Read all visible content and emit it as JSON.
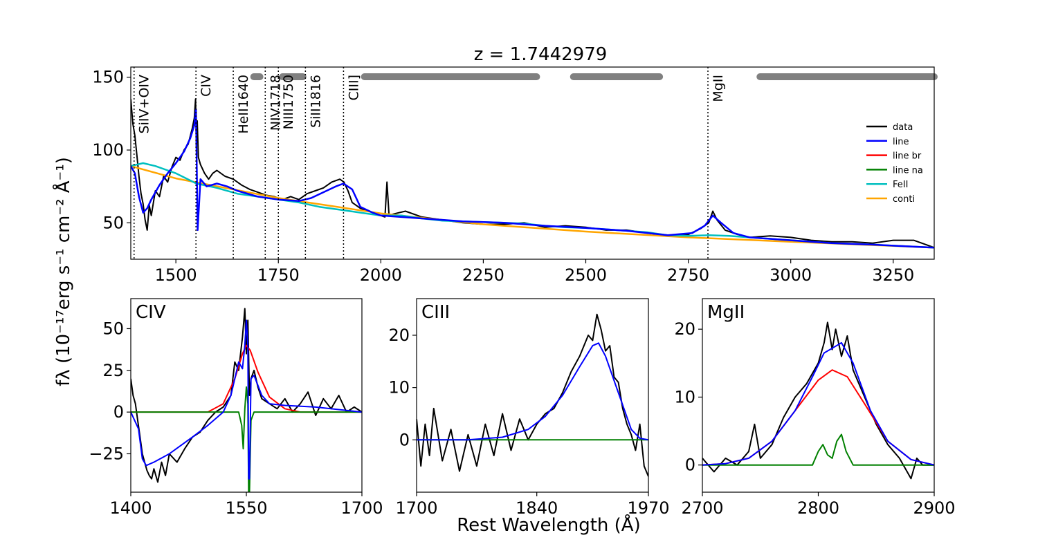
{
  "figure": {
    "title": "z = 1.7442979",
    "xlabel": "Rest Wavelength (Å)",
    "ylabel": "fλ (10⁻¹⁷erg s⁻¹ cm⁻² Å⁻¹)"
  },
  "colors": {
    "data": "#000000",
    "line": "#0000ff",
    "line_br": "#ff0000",
    "line_na": "#008000",
    "feii": "#00bfbf",
    "conti": "#ffa500",
    "mask": "#808080"
  },
  "legend": {
    "position": "right",
    "entries": [
      {
        "label": "data",
        "color": "#000000"
      },
      {
        "label": "line",
        "color": "#0000ff"
      },
      {
        "label": "line br",
        "color": "#ff0000"
      },
      {
        "label": "line na",
        "color": "#008000"
      },
      {
        "label": "FeII",
        "color": "#00bfbf"
      },
      {
        "label": "conti",
        "color": "#ffa500"
      }
    ]
  },
  "chart_data": [
    {
      "type": "line",
      "panel": "main",
      "xlim": [
        1390,
        3350
      ],
      "ylim": [
        25,
        157
      ],
      "xticks": [
        1500,
        1750,
        2000,
        2250,
        2500,
        2750,
        3000,
        3250
      ],
      "yticks": [
        50,
        100,
        150
      ],
      "line_markers": [
        {
          "label": "SiIV+OIV",
          "x": 1398
        },
        {
          "label": "CIV",
          "x": 1549
        },
        {
          "label": "HeII1640",
          "x": 1640
        },
        {
          "label": "NIV1718",
          "x": 1718
        },
        {
          "label": "NIII1750",
          "x": 1750
        },
        {
          "label": "SiII1816",
          "x": 1816
        },
        {
          "label": "CIII]",
          "x": 1909
        },
        {
          "label": "MgII",
          "x": 2798
        }
      ],
      "fit_windows": [
        [
          1690,
          1705
        ],
        [
          1760,
          1810
        ],
        [
          1960,
          2380
        ],
        [
          2470,
          2680
        ],
        [
          2925,
          3350
        ]
      ],
      "conti": {
        "x": [
          1390,
          1500,
          1750,
          2000,
          2250,
          2500,
          2750,
          3000,
          3350
        ],
        "y": [
          89,
          80.5,
          67,
          56.5,
          49,
          44,
          40,
          37,
          33
        ]
      },
      "feii": {
        "x": [
          1390,
          1420,
          1450,
          1480,
          1500,
          1550,
          1600,
          1650,
          1700,
          1750,
          1800,
          1850,
          1900,
          1950,
          2000,
          2050,
          2100,
          2150,
          2200,
          2250,
          2300,
          2350,
          2400,
          2450,
          2500,
          2550,
          2600,
          2650,
          2700,
          2750,
          2800,
          2850,
          2900,
          2950,
          3000,
          3100,
          3200,
          3350
        ],
        "y": [
          89,
          91,
          89,
          86,
          84,
          77,
          74,
          70,
          68,
          66,
          64,
          61,
          59,
          57,
          55,
          55,
          53,
          51.5,
          51,
          50.5,
          50,
          49.5,
          48,
          47,
          46.5,
          45.5,
          44.5,
          43.5,
          41.5,
          41,
          41.5,
          41,
          40,
          39,
          38,
          36,
          35,
          33
        ]
      },
      "model_line": {
        "x": [
          1390,
          1400,
          1410,
          1420,
          1430,
          1440,
          1460,
          1480,
          1500,
          1520,
          1535,
          1545,
          1549,
          1553,
          1560,
          1575,
          1600,
          1625,
          1650,
          1700,
          1750,
          1800,
          1830,
          1860,
          1890,
          1909,
          1930,
          1950,
          1980,
          2000,
          2100,
          2200,
          2300,
          2400,
          2500,
          2600,
          2700,
          2760,
          2790,
          2810,
          2830,
          2860,
          2900,
          3000,
          3100,
          3200,
          3350
        ],
        "y": [
          89,
          84,
          68,
          57,
          60,
          66,
          76,
          84,
          91,
          99,
          108,
          117,
          128,
          45,
          80,
          75,
          77,
          75,
          72,
          68,
          66,
          65,
          67,
          71,
          75,
          77,
          73,
          61,
          57,
          55,
          53,
          51,
          50,
          48,
          46.5,
          44.5,
          41.5,
          43,
          48,
          55,
          50,
          43,
          40,
          38,
          36,
          35,
          33
        ]
      },
      "data_line": {
        "x": [
          1390,
          1395,
          1400,
          1405,
          1410,
          1415,
          1420,
          1425,
          1430,
          1435,
          1440,
          1450,
          1460,
          1470,
          1480,
          1490,
          1500,
          1510,
          1520,
          1530,
          1540,
          1545,
          1548,
          1550,
          1552,
          1555,
          1560,
          1570,
          1580,
          1590,
          1600,
          1620,
          1640,
          1660,
          1680,
          1700,
          1720,
          1740,
          1760,
          1780,
          1800,
          1820,
          1840,
          1860,
          1880,
          1900,
          1910,
          1920,
          1930,
          1950,
          1970,
          1990,
          2010,
          2015,
          2020,
          2030,
          2060,
          2100,
          2150,
          2200,
          2250,
          2300,
          2350,
          2400,
          2450,
          2500,
          2550,
          2600,
          2650,
          2700,
          2750,
          2780,
          2800,
          2810,
          2820,
          2840,
          2870,
          2900,
          2950,
          3000,
          3050,
          3100,
          3150,
          3200,
          3250,
          3300,
          3350
        ],
        "y": [
          135,
          118,
          110,
          96,
          82,
          70,
          63,
          52,
          45,
          62,
          55,
          72,
          68,
          82,
          78,
          88,
          95,
          93,
          100,
          104,
          115,
          122,
          135,
          102,
          120,
          95,
          90,
          84,
          80,
          84,
          86,
          82,
          80,
          76,
          73,
          71,
          69,
          68,
          66,
          68,
          66,
          70,
          72,
          74,
          78,
          80,
          78,
          72,
          64,
          60,
          58,
          56,
          54,
          78,
          55,
          56,
          58,
          54,
          52,
          50,
          49,
          49,
          50,
          47,
          48,
          47,
          45,
          45,
          43,
          41,
          42,
          46,
          50,
          58,
          52,
          45,
          42,
          40,
          41,
          40,
          38,
          37,
          37,
          36,
          38,
          38,
          33
        ]
      }
    },
    {
      "type": "line",
      "panel": "CIV",
      "title": "CIV",
      "xlim": [
        1400,
        1700
      ],
      "ylim": [
        -48,
        68
      ],
      "xticks": [
        1400,
        1550,
        1700
      ],
      "yticks": [
        -25,
        0,
        25,
        50
      ],
      "line_br": {
        "x": [
          1400,
          1420,
          1440,
          1460,
          1480,
          1500,
          1520,
          1535,
          1545,
          1550,
          1555,
          1565,
          1580,
          1600,
          1620,
          1650,
          1700
        ],
        "y": [
          0,
          0,
          0,
          0,
          0,
          0,
          5,
          20,
          35,
          40,
          37,
          24,
          9,
          2,
          0,
          0,
          0
        ]
      },
      "line_na": {
        "x": [
          1400,
          1540,
          1544,
          1546,
          1548,
          1550,
          1552,
          1553,
          1554,
          1556,
          1560,
          1700
        ],
        "y": [
          0,
          0,
          -8,
          -22,
          2,
          15,
          5,
          -48,
          -48,
          -5,
          0,
          0
        ]
      },
      "model_line": {
        "x": [
          1400,
          1410,
          1415,
          1420,
          1425,
          1430,
          1450,
          1480,
          1500,
          1520,
          1530,
          1540,
          1545,
          1548,
          1550,
          1552,
          1553,
          1554,
          1556,
          1560,
          1570,
          1580,
          1600,
          1640,
          1700
        ],
        "y": [
          0,
          -10,
          -28,
          -32,
          -31,
          -30,
          -25,
          -15,
          -8,
          0,
          10,
          30,
          26,
          40,
          55,
          40,
          -40,
          -40,
          20,
          22,
          10,
          5,
          4,
          3,
          0
        ]
      },
      "data_line": {
        "x": [
          1400,
          1403,
          1406,
          1409,
          1412,
          1415,
          1418,
          1421,
          1424,
          1427,
          1430,
          1435,
          1440,
          1445,
          1450,
          1460,
          1470,
          1480,
          1490,
          1500,
          1510,
          1520,
          1530,
          1535,
          1540,
          1545,
          1548,
          1550,
          1552,
          1554,
          1556,
          1560,
          1565,
          1570,
          1580,
          1590,
          1600,
          1610,
          1620,
          1630,
          1640,
          1650,
          1660,
          1670,
          1680,
          1690,
          1700
        ],
        "y": [
          20,
          10,
          5,
          -5,
          -15,
          -25,
          -30,
          -35,
          -38,
          -40,
          -34,
          -42,
          -30,
          -38,
          -25,
          -30,
          -22,
          -15,
          -12,
          -5,
          0,
          3,
          10,
          30,
          25,
          45,
          62,
          35,
          55,
          10,
          20,
          25,
          15,
          8,
          5,
          2,
          8,
          0,
          5,
          12,
          -2,
          8,
          2,
          10,
          0,
          3,
          0
        ]
      }
    },
    {
      "type": "line",
      "panel": "CIII",
      "title": "CIII",
      "xlim": [
        1700,
        1970
      ],
      "ylim": [
        -10,
        27
      ],
      "xticks": [
        1700,
        1840,
        1970
      ],
      "yticks": [
        0,
        10,
        20
      ],
      "line_na": {
        "x": [
          1700,
          1970
        ],
        "y": [
          0,
          0
        ]
      },
      "model_line": {
        "x": [
          1700,
          1760,
          1800,
          1830,
          1850,
          1870,
          1890,
          1905,
          1912,
          1920,
          1935,
          1950,
          1960,
          1970
        ],
        "y": [
          0,
          0,
          0.5,
          2,
          4.5,
          8.5,
          14,
          18,
          18.5,
          16,
          9,
          2,
          0.3,
          0
        ]
      },
      "data_line": {
        "x": [
          1700,
          1705,
          1710,
          1715,
          1720,
          1730,
          1740,
          1750,
          1760,
          1770,
          1780,
          1790,
          1800,
          1810,
          1820,
          1830,
          1840,
          1850,
          1860,
          1870,
          1880,
          1890,
          1900,
          1905,
          1910,
          1915,
          1920,
          1925,
          1930,
          1935,
          1940,
          1945,
          1950,
          1955,
          1960,
          1965,
          1970
        ],
        "y": [
          4,
          -5,
          3,
          -3,
          6,
          -4,
          2,
          -6,
          1,
          -5,
          3,
          -3,
          5,
          -2,
          4,
          0,
          3,
          5,
          6,
          9,
          13,
          16,
          20,
          19,
          24,
          21,
          17,
          18,
          12,
          11,
          6,
          3,
          1,
          -2,
          3,
          -5,
          -7
        ]
      }
    },
    {
      "type": "line",
      "panel": "MgII",
      "title": "MgII",
      "xlim": [
        2700,
        2900
      ],
      "ylim": [
        -4,
        24.5
      ],
      "xticks": [
        2700,
        2800,
        2900
      ],
      "yticks": [
        0,
        10,
        20
      ],
      "line_br": {
        "x": [
          2700,
          2720,
          2740,
          2760,
          2780,
          2800,
          2812,
          2825,
          2840,
          2860,
          2880,
          2900
        ],
        "y": [
          0,
          0.2,
          1,
          3.5,
          8,
          12.5,
          14,
          13,
          9,
          3.5,
          0.8,
          0
        ]
      },
      "line_na": {
        "x": [
          2700,
          2795,
          2800,
          2804,
          2808,
          2812,
          2816,
          2820,
          2824,
          2830,
          2900
        ],
        "y": [
          0,
          0,
          2,
          3,
          1.5,
          1,
          3.5,
          4.5,
          2,
          0,
          0
        ]
      },
      "model_line": {
        "x": [
          2700,
          2720,
          2740,
          2760,
          2780,
          2795,
          2805,
          2810,
          2815,
          2820,
          2830,
          2845,
          2860,
          2880,
          2900
        ],
        "y": [
          0,
          0.2,
          1,
          3.5,
          8,
          13,
          16.5,
          17,
          17.5,
          18,
          15,
          8,
          3.5,
          0.8,
          0
        ]
      },
      "data_line": {
        "x": [
          2700,
          2710,
          2720,
          2730,
          2740,
          2745,
          2750,
          2760,
          2770,
          2780,
          2790,
          2800,
          2805,
          2808,
          2812,
          2815,
          2820,
          2825,
          2830,
          2840,
          2850,
          2860,
          2870,
          2880,
          2885,
          2890,
          2900
        ],
        "y": [
          1,
          -1,
          1,
          0,
          2,
          6,
          1,
          3,
          7,
          10,
          12,
          15,
          18,
          21,
          17,
          20,
          16,
          19,
          14,
          10,
          6,
          3,
          1,
          -2,
          1,
          0,
          0
        ]
      }
    }
  ]
}
